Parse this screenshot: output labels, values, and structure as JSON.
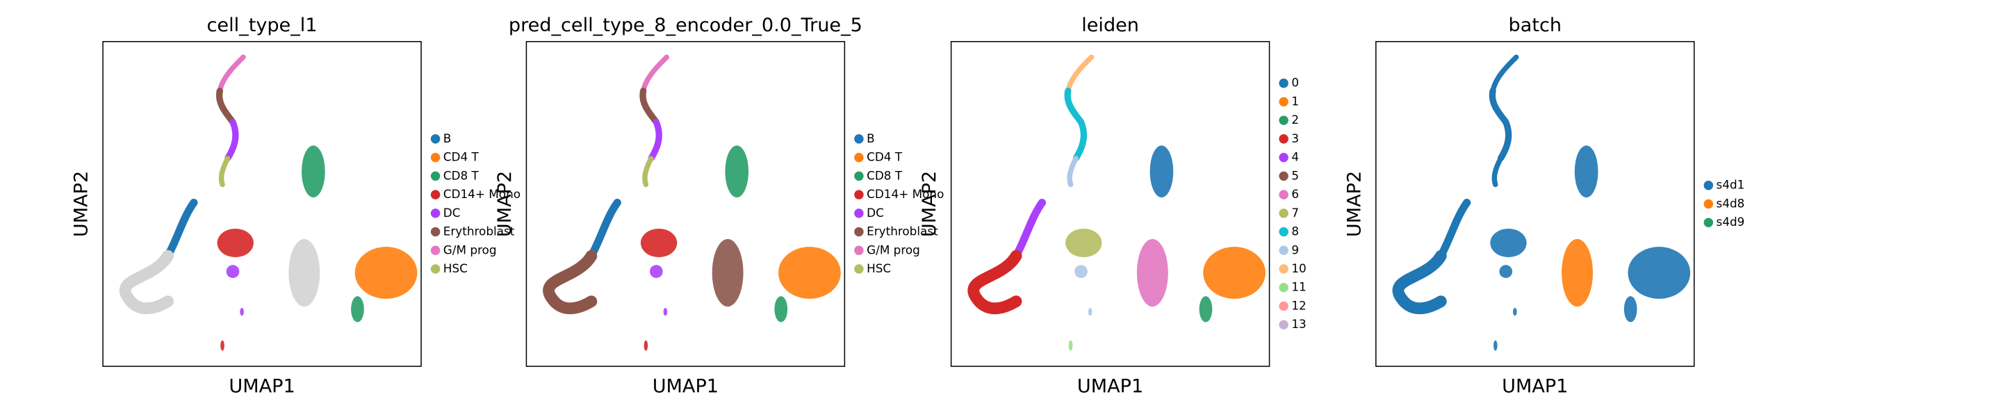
{
  "chart_data": [
    {
      "type": "scatter",
      "title": "cell_type_l1",
      "x_label": "UMAP1",
      "y_label": "UMAP2",
      "na_color": "#d3d3d3",
      "series": [
        {
          "name": "B",
          "color": "#1f77b4"
        },
        {
          "name": "CD4 T",
          "color": "#ff7f0e"
        },
        {
          "name": "CD8 T",
          "color": "#279e68"
        },
        {
          "name": "CD14+ Mono",
          "color": "#d62728"
        },
        {
          "name": "DC",
          "color": "#aa40fc"
        },
        {
          "name": "Erythroblast",
          "color": "#8c564b"
        },
        {
          "name": "G/M prog",
          "color": "#e377c2"
        },
        {
          "name": "HSC",
          "color": "#b5bd61"
        }
      ]
    },
    {
      "type": "scatter",
      "title": "pred_cell_type_8_encoder_0.0_True_5",
      "x_label": "UMAP1",
      "y_label": "UMAP2",
      "series": [
        {
          "name": "B",
          "color": "#1f77b4"
        },
        {
          "name": "CD4 T",
          "color": "#ff7f0e"
        },
        {
          "name": "CD8 T",
          "color": "#279e68"
        },
        {
          "name": "CD14+ Mono",
          "color": "#d62728"
        },
        {
          "name": "DC",
          "color": "#aa40fc"
        },
        {
          "name": "Erythroblast",
          "color": "#8c564b"
        },
        {
          "name": "G/M prog",
          "color": "#e377c2"
        },
        {
          "name": "HSC",
          "color": "#b5bd61"
        }
      ]
    },
    {
      "type": "scatter",
      "title": "leiden",
      "x_label": "UMAP1",
      "y_label": "UMAP2",
      "series": [
        {
          "name": "0",
          "color": "#1f77b4"
        },
        {
          "name": "1",
          "color": "#ff7f0e"
        },
        {
          "name": "2",
          "color": "#279e68"
        },
        {
          "name": "3",
          "color": "#d62728"
        },
        {
          "name": "4",
          "color": "#aa40fc"
        },
        {
          "name": "5",
          "color": "#8c564b"
        },
        {
          "name": "6",
          "color": "#e377c2"
        },
        {
          "name": "7",
          "color": "#b5bd61"
        },
        {
          "name": "8",
          "color": "#17becf"
        },
        {
          "name": "9",
          "color": "#aec7e8"
        },
        {
          "name": "10",
          "color": "#ffbb78"
        },
        {
          "name": "11",
          "color": "#98df8a"
        },
        {
          "name": "12",
          "color": "#ff9896"
        },
        {
          "name": "13",
          "color": "#c5b0d5"
        }
      ]
    },
    {
      "type": "scatter",
      "title": "batch",
      "x_label": "UMAP1",
      "y_label": "UMAP2",
      "series": [
        {
          "name": "s4d1",
          "color": "#1f77b4"
        },
        {
          "name": "s4d8",
          "color": "#ff7f0e"
        },
        {
          "name": "s4d9",
          "color": "#279e68"
        }
      ]
    }
  ]
}
